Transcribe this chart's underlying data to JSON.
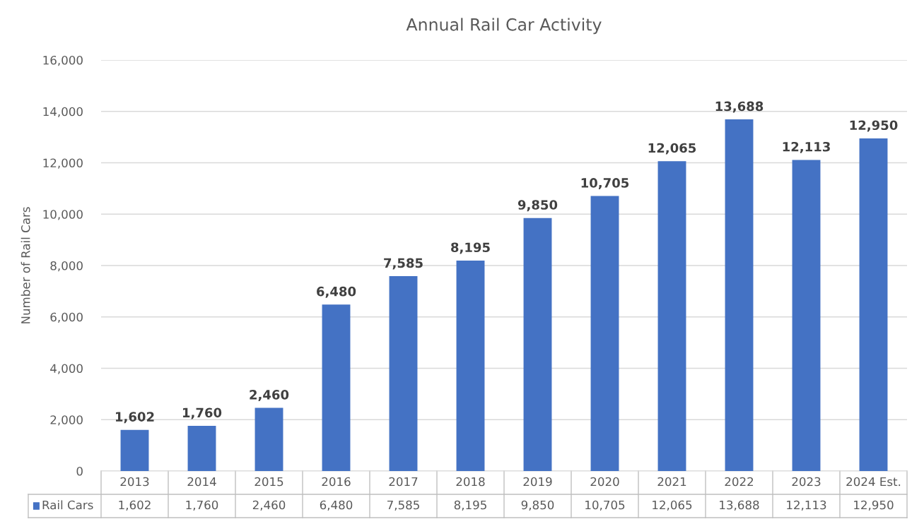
{
  "chart_data": {
    "type": "bar",
    "title": "Annual Rail Car Activity",
    "ylabel": "Number of Rail Cars",
    "categories": [
      "2013",
      "2014",
      "2015",
      "2016",
      "2017",
      "2018",
      "2019",
      "2020",
      "2021",
      "2022",
      "2023",
      "2024 Est."
    ],
    "series": [
      {
        "name": "Rail Cars",
        "color": "#4472c4",
        "values": [
          1602,
          1760,
          2460,
          6480,
          7585,
          8195,
          9850,
          10705,
          12065,
          13688,
          12113,
          12950
        ],
        "value_labels": [
          "1,602",
          "1,760",
          "2,460",
          "6,480",
          "7,585",
          "8,195",
          "9,850",
          "10,705",
          "12,065",
          "13,688",
          "12,113",
          "12,950"
        ]
      }
    ],
    "ylim": [
      0,
      16000
    ],
    "yticks": [
      0,
      {
        "value": 2000,
        "label": "2,000"
      },
      {
        "value": 4000,
        "label": "4,000"
      },
      {
        "value": 6000,
        "label": "6,000"
      },
      {
        "value": 8000,
        "label": "8,000"
      },
      {
        "value": 10000,
        "label": "10,000"
      },
      {
        "value": 12000,
        "label": "12,000"
      },
      {
        "value": 14000,
        "label": "14,000"
      },
      {
        "value": 16000,
        "label": "16,000"
      }
    ],
    "grid": "y",
    "data_labels": true,
    "legend": "bottom"
  }
}
